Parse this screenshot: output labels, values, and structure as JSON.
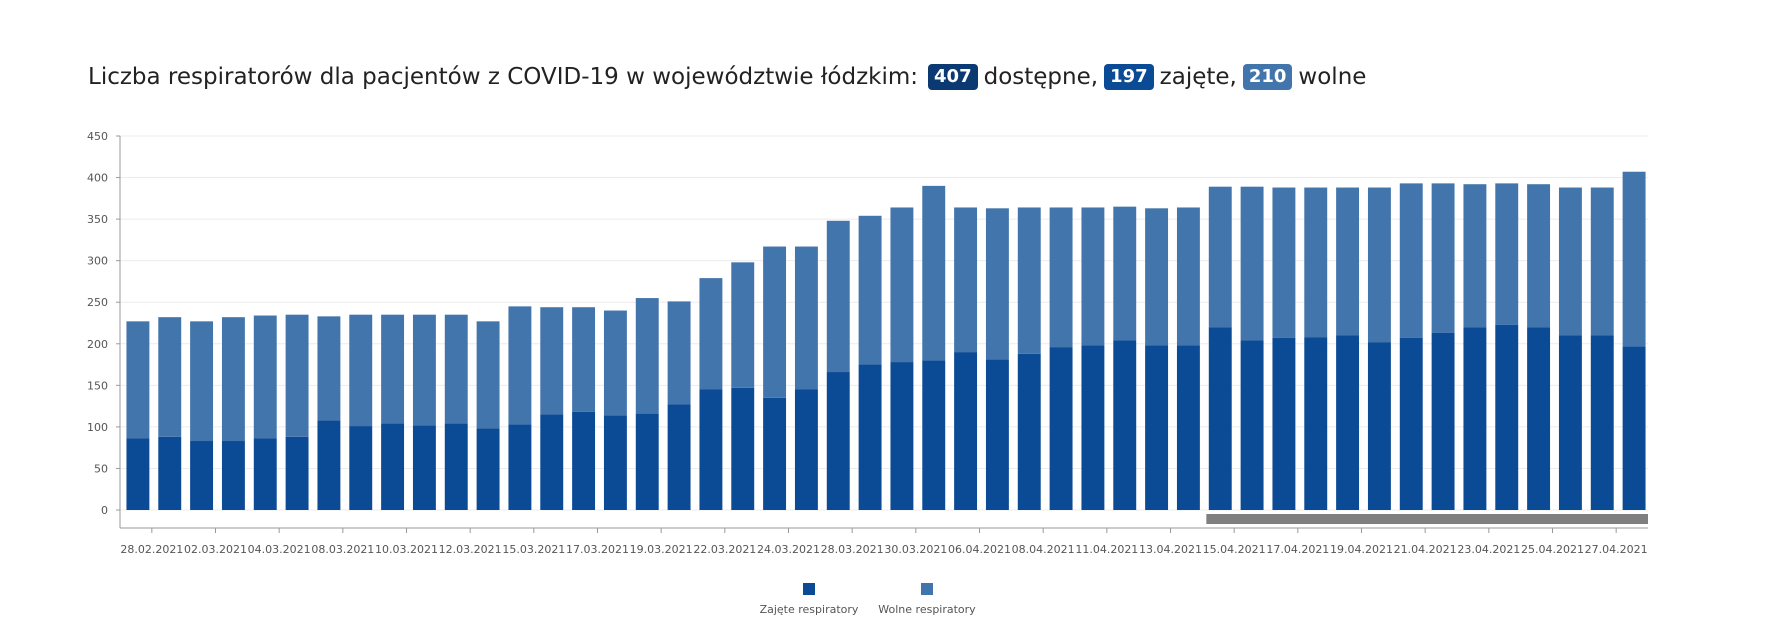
{
  "title": {
    "prefix": "Liczba respiratorów dla pacjentów z COVID-19 w województwie łódzkim:",
    "available_value": "407",
    "available_label": "dostępne,",
    "occupied_value": "197",
    "occupied_label": "zajęte,",
    "free_value": "210",
    "free_label": "wolne"
  },
  "colors": {
    "occupied": "#0b4a94",
    "free": "#4375ad",
    "available_badge": "#0b3a73",
    "occupied_badge": "#0b4a94",
    "free_badge": "#4375ad",
    "scrollbar": "#7f7f7f"
  },
  "legend": [
    {
      "label": "Zajęte respiratory",
      "color": "#0b4a94"
    },
    {
      "label": "Wolne respiratory",
      "color": "#4375ad"
    }
  ],
  "chart_data": {
    "type": "bar",
    "stacked": true,
    "ylim": [
      0,
      450
    ],
    "yticks": [
      0,
      50,
      100,
      150,
      200,
      250,
      300,
      350,
      400,
      450
    ],
    "grid": true,
    "legend_position": "bottom-center",
    "xtick_labels": [
      "28.02.2021",
      "02.03.2021",
      "04.03.2021",
      "08.03.2021",
      "10.03.2021",
      "12.03.2021",
      "15.03.2021",
      "17.03.2021",
      "19.03.2021",
      "22.03.2021",
      "24.03.2021",
      "28.03.2021",
      "30.03.2021",
      "06.04.2021",
      "08.04.2021",
      "11.04.2021",
      "13.04.2021",
      "15.04.2021",
      "17.04.2021",
      "19.04.2021",
      "21.04.2021",
      "23.04.2021",
      "25.04.2021",
      "27.04.2021"
    ],
    "series": [
      {
        "name": "Zajęte respiratory",
        "values": [
          86,
          88,
          83,
          83,
          86,
          88,
          108,
          101,
          104,
          102,
          104,
          98,
          103,
          115,
          118,
          114,
          116,
          127,
          145,
          147,
          135,
          145,
          166,
          175,
          178,
          180,
          190,
          181,
          188,
          196,
          198,
          204,
          198,
          198,
          220,
          204,
          207,
          208,
          210,
          202,
          207,
          213,
          220,
          223,
          220,
          210,
          210,
          197
        ]
      },
      {
        "name": "Wolne respiratory",
        "values": [
          141,
          144,
          144,
          149,
          148,
          147,
          125,
          134,
          131,
          133,
          131,
          129,
          142,
          129,
          126,
          126,
          139,
          124,
          134,
          151,
          182,
          172,
          182,
          179,
          186,
          210,
          174,
          182,
          176,
          168,
          166,
          161,
          165,
          166,
          169,
          185,
          181,
          180,
          178,
          186,
          186,
          180,
          172,
          170,
          172,
          178,
          178,
          210
        ]
      }
    ]
  }
}
